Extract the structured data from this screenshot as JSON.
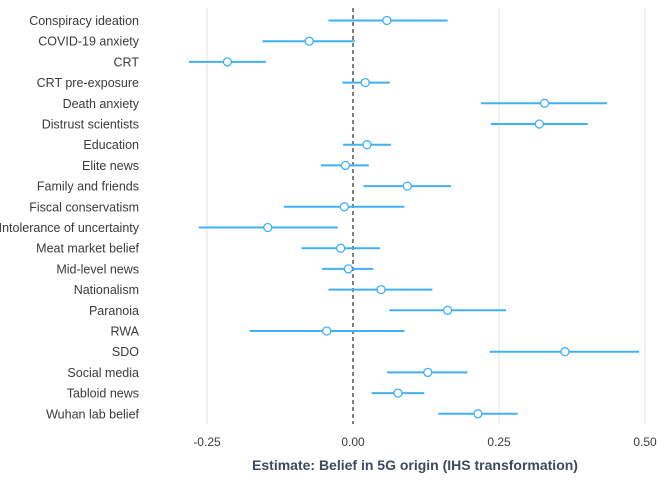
{
  "chart_data": {
    "type": "scatter",
    "subtype": "coefficient-plot",
    "xlabel": "Estimate: Belief in 5G origin (IHS transformation)",
    "ylabel": "",
    "xlim": [
      -0.29,
      0.5
    ],
    "xticks": [
      -0.25,
      0.0,
      0.25,
      0.5
    ],
    "xtick_labels": [
      "-0.25",
      "0.00",
      "0.25",
      "0.50"
    ],
    "reference_line": 0,
    "grid": "vertical major",
    "color": "#42b0f5",
    "points": [
      {
        "label": "Conspiracy ideation",
        "estimate": 0.058,
        "low": -0.042,
        "high": 0.162
      },
      {
        "label": "COVID-19 anxiety",
        "estimate": -0.075,
        "low": -0.155,
        "high": 0.003
      },
      {
        "label": "CRT",
        "estimate": -0.215,
        "low": -0.281,
        "high": -0.149
      },
      {
        "label": "CRT pre-exposure",
        "estimate": 0.021,
        "low": -0.018,
        "high": 0.063
      },
      {
        "label": "Death anxiety",
        "estimate": 0.328,
        "low": 0.219,
        "high": 0.435
      },
      {
        "label": "Distrust scientists",
        "estimate": 0.319,
        "low": 0.236,
        "high": 0.402
      },
      {
        "label": "Education",
        "estimate": 0.024,
        "low": -0.017,
        "high": 0.065
      },
      {
        "label": "Elite news",
        "estimate": -0.013,
        "low": -0.055,
        "high": 0.027
      },
      {
        "label": "Family and friends",
        "estimate": 0.093,
        "low": 0.018,
        "high": 0.168
      },
      {
        "label": "Fiscal conservatism",
        "estimate": -0.015,
        "low": -0.118,
        "high": 0.088
      },
      {
        "label": "Intolerance of uncertainty",
        "estimate": -0.146,
        "low": -0.264,
        "high": -0.026
      },
      {
        "label": "Meat market belief",
        "estimate": -0.021,
        "low": -0.088,
        "high": 0.046
      },
      {
        "label": "Mid-level news",
        "estimate": -0.008,
        "low": -0.053,
        "high": 0.035
      },
      {
        "label": "Nationalism",
        "estimate": 0.048,
        "low": -0.042,
        "high": 0.136
      },
      {
        "label": "Paranoia",
        "estimate": 0.162,
        "low": 0.062,
        "high": 0.262
      },
      {
        "label": "RWA",
        "estimate": -0.045,
        "low": -0.177,
        "high": 0.088
      },
      {
        "label": "SDO",
        "estimate": 0.363,
        "low": 0.234,
        "high": 0.49
      },
      {
        "label": "Social media",
        "estimate": 0.128,
        "low": 0.058,
        "high": 0.196
      },
      {
        "label": "Tabloid news",
        "estimate": 0.077,
        "low": 0.032,
        "high": 0.122
      },
      {
        "label": "Wuhan lab belief",
        "estimate": 0.214,
        "low": 0.146,
        "high": 0.282
      }
    ]
  }
}
